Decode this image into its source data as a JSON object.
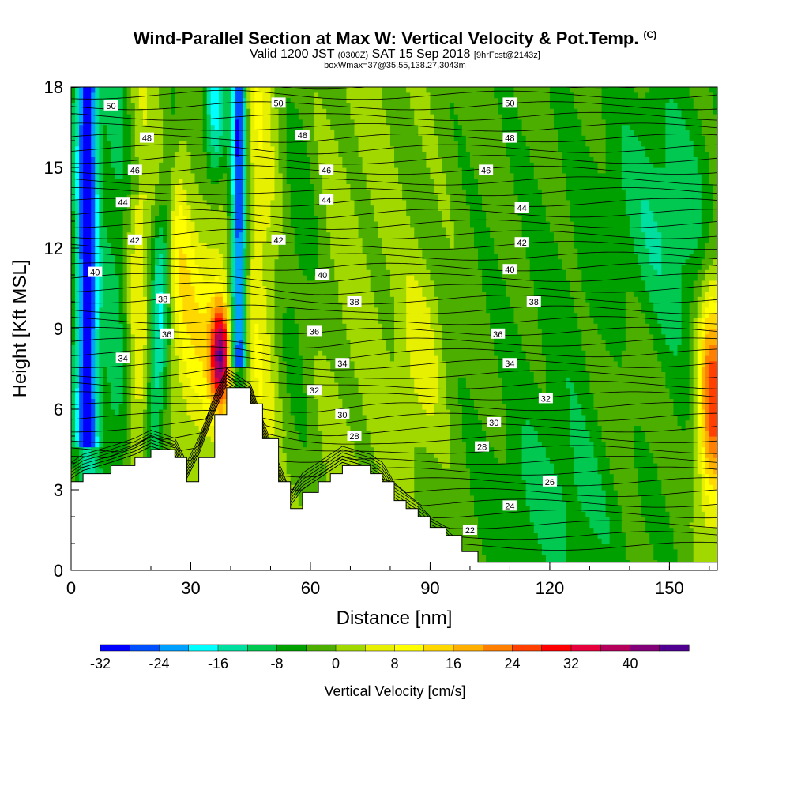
{
  "header": {
    "title": "Wind-Parallel Section at Max W: Vertical Velocity & Pot.Temp.",
    "copyright": "(C)",
    "valid_a": "Valid 1200 JST",
    "valid_b": "(0300Z)",
    "valid_c": "SAT 15 Sep 2018",
    "valid_d": "[9hrFcst@2143z]",
    "box": "boxWmax=37@35.55,138.27,3043m"
  },
  "chart_data": {
    "type": "heatmap",
    "xlabel": "Distance [nm]",
    "ylabel": "Height [Kft MSL]",
    "xlim": [
      0,
      162
    ],
    "ylim": [
      0,
      18
    ],
    "xticks": [
      0,
      30,
      60,
      90,
      120,
      150
    ],
    "yticks": [
      0,
      3,
      6,
      9,
      12,
      15,
      18
    ],
    "colorbar": {
      "label": "Vertical Velocity [cm/s]",
      "range": [
        -32,
        48
      ],
      "tick_values": [
        -32,
        -24,
        -16,
        -8,
        0,
        8,
        16,
        24,
        32,
        40
      ],
      "colors": [
        "#0000ff",
        "#0050ff",
        "#00a0ff",
        "#00ffff",
        "#00dfa0",
        "#00c850",
        "#00a000",
        "#4caf00",
        "#a0d800",
        "#e6f000",
        "#ffff00",
        "#ffd800",
        "#ffaf00",
        "#ff8000",
        "#ff4000",
        "#ff0000",
        "#e6003c",
        "#b4005a",
        "#820078",
        "#500090"
      ]
    },
    "terrain_kft": [
      [
        0,
        3.3
      ],
      [
        3,
        3.6
      ],
      [
        10,
        3.9
      ],
      [
        16,
        4.2
      ],
      [
        20,
        4.5
      ],
      [
        26,
        4.2
      ],
      [
        29,
        3.3
      ],
      [
        32,
        4.2
      ],
      [
        36,
        5.8
      ],
      [
        39,
        6.8
      ],
      [
        45,
        6.2
      ],
      [
        48,
        4.9
      ],
      [
        52,
        3.3
      ],
      [
        55,
        2.3
      ],
      [
        58,
        2.9
      ],
      [
        62,
        3.3
      ],
      [
        65,
        3.6
      ],
      [
        68,
        3.9
      ],
      [
        75,
        3.6
      ],
      [
        78,
        3.3
      ],
      [
        81,
        2.6
      ],
      [
        84,
        2.3
      ],
      [
        87,
        2.0
      ],
      [
        90,
        1.6
      ],
      [
        94,
        1.3
      ],
      [
        98,
        0.7
      ],
      [
        102,
        0.3
      ],
      [
        162,
        0.3
      ]
    ],
    "theta_labels": [
      {
        "x": 10,
        "y": 17.3,
        "t": "50"
      },
      {
        "x": 52,
        "y": 17.4,
        "t": "50"
      },
      {
        "x": 110,
        "y": 17.4,
        "t": "50"
      },
      {
        "x": 19,
        "y": 16.1,
        "t": "48"
      },
      {
        "x": 58,
        "y": 16.2,
        "t": "48"
      },
      {
        "x": 110,
        "y": 16.1,
        "t": "48"
      },
      {
        "x": 16,
        "y": 14.9,
        "t": "46"
      },
      {
        "x": 64,
        "y": 14.9,
        "t": "46"
      },
      {
        "x": 104,
        "y": 14.9,
        "t": "46"
      },
      {
        "x": 13,
        "y": 13.7,
        "t": "44"
      },
      {
        "x": 64,
        "y": 13.8,
        "t": "44"
      },
      {
        "x": 113,
        "y": 13.5,
        "t": "44"
      },
      {
        "x": 16,
        "y": 12.3,
        "t": "42"
      },
      {
        "x": 52,
        "y": 12.3,
        "t": "42"
      },
      {
        "x": 113,
        "y": 12.2,
        "t": "42"
      },
      {
        "x": 6,
        "y": 11.1,
        "t": "40"
      },
      {
        "x": 63,
        "y": 11.0,
        "t": "40"
      },
      {
        "x": 110,
        "y": 11.2,
        "t": "40"
      },
      {
        "x": 23,
        "y": 10.1,
        "t": "38"
      },
      {
        "x": 71,
        "y": 10.0,
        "t": "38"
      },
      {
        "x": 116,
        "y": 10.0,
        "t": "38"
      },
      {
        "x": 24,
        "y": 8.8,
        "t": "36"
      },
      {
        "x": 61,
        "y": 8.9,
        "t": "36"
      },
      {
        "x": 107,
        "y": 8.8,
        "t": "36"
      },
      {
        "x": 13,
        "y": 7.9,
        "t": "34"
      },
      {
        "x": 68,
        "y": 7.7,
        "t": "34"
      },
      {
        "x": 110,
        "y": 7.7,
        "t": "34"
      },
      {
        "x": 61,
        "y": 6.7,
        "t": "32"
      },
      {
        "x": 119,
        "y": 6.4,
        "t": "32"
      },
      {
        "x": 68,
        "y": 5.8,
        "t": "30"
      },
      {
        "x": 106,
        "y": 5.5,
        "t": "30"
      },
      {
        "x": 71,
        "y": 5.0,
        "t": "28"
      },
      {
        "x": 103,
        "y": 4.6,
        "t": "28"
      },
      {
        "x": 120,
        "y": 3.3,
        "t": "26"
      },
      {
        "x": 110,
        "y": 2.4,
        "t": "24"
      },
      {
        "x": 100,
        "y": 1.5,
        "t": "22"
      }
    ]
  }
}
